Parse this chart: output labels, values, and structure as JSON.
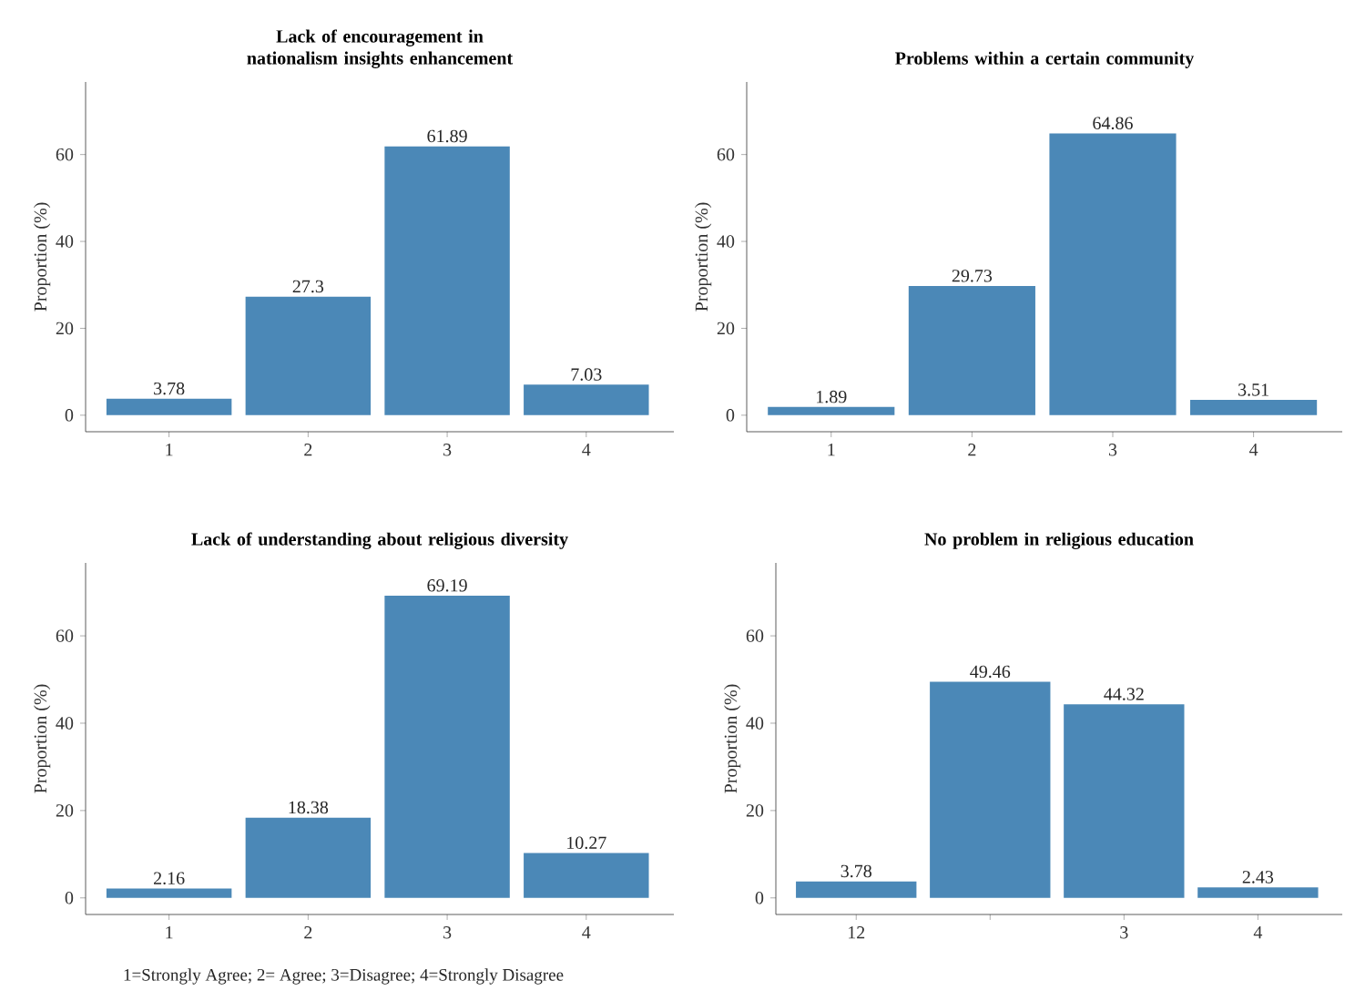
{
  "chart_data": [
    {
      "type": "bar",
      "title": "Lack of encouragement in nationalism insights enhancement",
      "ylabel": "Proportion (%)",
      "categories": [
        "1",
        "2",
        "3",
        "4"
      ],
      "values": [
        3.78,
        27.3,
        61.89,
        7.03
      ],
      "color": "#4b88b7",
      "ylim": [
        -3.8,
        76.7
      ],
      "yticks": [
        0,
        20,
        40,
        60
      ],
      "data_labels": true,
      "grid": false
    },
    {
      "type": "bar",
      "title": "Problems within a certain community",
      "ylabel": "Proportion (%)",
      "categories": [
        "1",
        "2",
        "3",
        "4"
      ],
      "values": [
        1.89,
        29.73,
        64.86,
        3.51
      ],
      "color": "#4b88b7",
      "ylim": [
        -3.8,
        76.7
      ],
      "yticks": [
        0,
        20,
        40,
        60
      ],
      "data_labels": true,
      "grid": false
    },
    {
      "type": "bar",
      "title": "Lack of understanding about religious diversity",
      "ylabel": "Proportion (%)",
      "categories": [
        "1",
        "2",
        "3",
        "4"
      ],
      "values": [
        2.16,
        18.38,
        69.19,
        10.27
      ],
      "color": "#4b88b7",
      "ylim": [
        -3.8,
        76.7
      ],
      "yticks": [
        0,
        20,
        40,
        60
      ],
      "data_labels": true,
      "grid": false,
      "annotations": [
        "1=Strongly Agree; 2= Agree; 3=Disagree; 4=Strongly Disagree"
      ]
    },
    {
      "type": "bar",
      "title": "No problem in religious education",
      "ylabel": "Proportion (%)",
      "categories": [
        "12",
        null,
        "3",
        "4"
      ],
      "values": [
        3.78,
        49.46,
        44.32,
        2.43
      ],
      "color": "#4b88b7",
      "ylim": [
        -3.8,
        76.7
      ],
      "yticks": [
        0,
        20,
        40,
        60
      ],
      "data_labels": true,
      "grid": false
    }
  ]
}
